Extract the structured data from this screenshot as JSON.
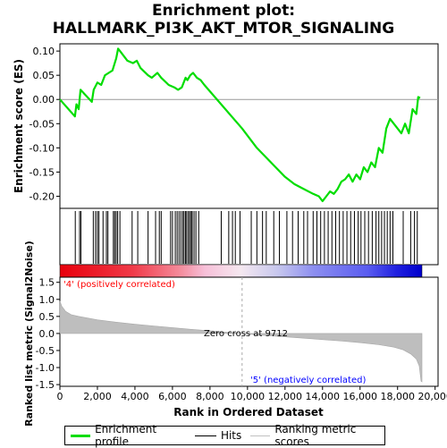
{
  "title": {
    "line1": "Enrichment plot:",
    "line2": "HALLMARK_PI3K_AKT_MTOR_SIGNALING"
  },
  "legend": {
    "items": [
      {
        "label": "Enrichment profile",
        "color": "#00dd00"
      },
      {
        "label": "Hits",
        "color": "#000000"
      },
      {
        "label": "Ranking metric scores",
        "color": "#c0c0c0"
      }
    ]
  },
  "colors": {
    "es_line": "#00dd00",
    "hits": "#000000",
    "metric_fill": "#bebebe",
    "positive_label": "#ff0000",
    "negative_label": "#0000ff",
    "zero_line": "#aaaaaa"
  },
  "chart_data": [
    {
      "type": "line",
      "name": "enrichment-score",
      "ylabel": "Enrichment score (ES)",
      "xlim": [
        0,
        19300
      ],
      "ylim": [
        -0.225,
        0.115
      ],
      "yticks": [
        0.1,
        0.05,
        0.0,
        -0.05,
        -0.1,
        -0.15,
        -0.2
      ],
      "ytick_labels": [
        "0.10",
        "0.05",
        "0.00",
        "-0.05",
        "-0.10",
        "-0.15",
        "-0.20"
      ],
      "grid": false,
      "x": [
        0,
        800,
        880,
        1000,
        1100,
        1700,
        1800,
        2000,
        2200,
        2400,
        2600,
        2800,
        3000,
        3100,
        3200,
        3600,
        3900,
        4100,
        4300,
        4700,
        4900,
        5200,
        5400,
        5800,
        6100,
        6300,
        6500,
        6700,
        6800,
        6950,
        7100,
        7300,
        7500,
        7700,
        9712,
        10500,
        11500,
        12000,
        12500,
        13000,
        13500,
        13800,
        14000,
        14200,
        14400,
        14600,
        14800,
        15000,
        15200,
        15400,
        15600,
        15800,
        16000,
        16200,
        16400,
        16600,
        16800,
        17000,
        17200,
        17400,
        17600,
        17800,
        18000,
        18200,
        18400,
        18600,
        18800,
        19000,
        19100,
        19200
      ],
      "y": [
        0.0,
        -0.035,
        -0.01,
        -0.02,
        0.02,
        -0.005,
        0.02,
        0.035,
        0.03,
        0.05,
        0.055,
        0.06,
        0.085,
        0.105,
        0.1,
        0.08,
        0.075,
        0.08,
        0.065,
        0.05,
        0.045,
        0.055,
        0.045,
        0.03,
        0.025,
        0.02,
        0.025,
        0.045,
        0.04,
        0.05,
        0.055,
        0.045,
        0.04,
        0.03,
        -0.06,
        -0.1,
        -0.14,
        -0.16,
        -0.175,
        -0.185,
        -0.195,
        -0.2,
        -0.21,
        -0.2,
        -0.19,
        -0.195,
        -0.185,
        -0.17,
        -0.165,
        -0.155,
        -0.17,
        -0.155,
        -0.165,
        -0.14,
        -0.15,
        -0.13,
        -0.14,
        -0.1,
        -0.11,
        -0.06,
        -0.04,
        -0.05,
        -0.06,
        -0.07,
        -0.05,
        -0.07,
        -0.02,
        -0.03,
        0.005,
        0.003
      ]
    },
    {
      "type": "scatter",
      "name": "hits",
      "ylabel": "",
      "x": [
        820,
        1050,
        1120,
        1780,
        1900,
        2000,
        2080,
        2300,
        2480,
        2560,
        2850,
        2920,
        3000,
        3080,
        3200,
        3850,
        4150,
        4700,
        5100,
        5300,
        5400,
        5900,
        6000,
        6150,
        6250,
        6350,
        6450,
        6550,
        6620,
        6700,
        6760,
        6850,
        6920,
        7000,
        7050,
        7150,
        7250,
        7400,
        8600,
        9000,
        9200,
        9350,
        9600,
        10200,
        10500,
        10800,
        11000,
        11400,
        11700,
        12100,
        12400,
        12700,
        13000,
        13200,
        13500,
        13700,
        13900,
        14100,
        14300,
        14500,
        14700,
        14900,
        15100,
        15300,
        15500,
        15700,
        15900,
        16050,
        16250,
        16450,
        16650,
        16850,
        17000,
        17150,
        17300,
        17450,
        17600,
        17750,
        18300,
        18700,
        18900,
        19050
      ]
    },
    {
      "type": "area",
      "name": "ranked-list-metric",
      "ylabel": "Ranked list metric (Signal2Noise)",
      "xlabel": "Rank in Ordered Dataset",
      "xlim": [
        0,
        19300
      ],
      "ylim": [
        -1.55,
        1.65
      ],
      "xticks": [
        0,
        2000,
        4000,
        6000,
        8000,
        10000,
        12000,
        14000,
        16000,
        18000,
        20000
      ],
      "xtick_labels": [
        "0",
        "2,000",
        "4,000",
        "6,000",
        "8,000",
        "10,000",
        "12,000",
        "14,000",
        "16,000",
        "18,000",
        "20,000"
      ],
      "yticks": [
        1.5,
        1.0,
        0.5,
        0.0,
        -0.5,
        -1.0,
        -1.5
      ],
      "ytick_labels": [
        "1.5",
        "1.0",
        "0.5",
        "0.0",
        "-0.5",
        "-1.0",
        "-1.5"
      ],
      "x": [
        0,
        100,
        300,
        600,
        1000,
        2000,
        3000,
        4000,
        5000,
        6000,
        7000,
        8000,
        9000,
        9712,
        10500,
        12000,
        13000,
        14000,
        15000,
        16000,
        17000,
        17800,
        18300,
        18700,
        19000,
        19150,
        19250,
        19300
      ],
      "y": [
        0.95,
        0.8,
        0.65,
        0.55,
        0.5,
        0.4,
        0.33,
        0.27,
        0.22,
        0.17,
        0.12,
        0.08,
        0.03,
        0.0,
        -0.04,
        -0.1,
        -0.14,
        -0.18,
        -0.22,
        -0.27,
        -0.33,
        -0.4,
        -0.48,
        -0.6,
        -0.75,
        -0.95,
        -1.4,
        -1.42
      ]
    }
  ],
  "annotations": {
    "positive": "'4' (positively correlated)",
    "negative": "'5' (negatively correlated)",
    "zero_cross": "Zero cross at 9712"
  }
}
